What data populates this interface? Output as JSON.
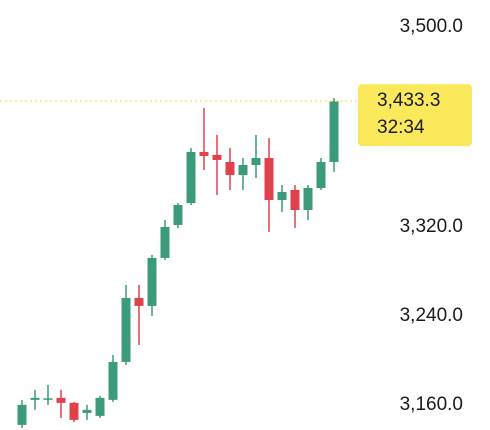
{
  "chart_data": {
    "type": "candlestick",
    "ylim": [
      3137.5,
      3524.3
    ],
    "yticks": [
      {
        "value": 3500,
        "label": "3,500.0"
      },
      {
        "value": 3320,
        "label": "3,320.0"
      },
      {
        "value": 3240,
        "label": "3,240.0"
      },
      {
        "value": 3160,
        "label": "3,160.0"
      }
    ],
    "up_color": "#3c9b7d",
    "down_color": "#e0424c",
    "open": [
      3142.1,
      3164.6,
      3165.5,
      3166.4,
      3161.9,
      3152.9,
      3150.2,
      3164.6,
      3198.7,
      3256.3,
      3249.1,
      3292.3,
      3321.9,
      3341.7,
      3387.6,
      3384.9,
      3378.6,
      3366.9,
      3375.9,
      3382.2,
      3344.4,
      3353.4,
      3335.4,
      3355.2,
      3378.6
    ],
    "high": [
      3164.6,
      3173.6,
      3178.1,
      3173.6,
      3162.8,
      3160.1,
      3168.2,
      3205.0,
      3268.0,
      3268.0,
      3295.0,
      3326.4,
      3341.7,
      3391.2,
      3427.2,
      3402.9,
      3391.2,
      3382.2,
      3402.9,
      3400.2,
      3357.9,
      3357.9,
      3357.9,
      3382.2,
      3436.1
    ],
    "low": [
      3139.4,
      3155.6,
      3160.1,
      3148.4,
      3144.8,
      3146.6,
      3148.4,
      3162.8,
      3196.0,
      3214.0,
      3240.1,
      3290.5,
      3319.2,
      3339.9,
      3371.4,
      3348.9,
      3353.4,
      3353.4,
      3364.2,
      3315.6,
      3333.6,
      3319.2,
      3326.4,
      3353.4,
      3369.6
    ],
    "close": [
      3160.1,
      3166.4,
      3166.0,
      3161.9,
      3146.6,
      3155.6,
      3166.4,
      3198.7,
      3256.3,
      3249.1,
      3292.3,
      3320.1,
      3339.9,
      3387.6,
      3384.0,
      3380.4,
      3366.9,
      3375.9,
      3382.2,
      3344.4,
      3351.6,
      3335.4,
      3355.2,
      3378.6,
      3433.3
    ],
    "last_price": {
      "value": 3433.3,
      "label": "3,433.3"
    },
    "countdown": "32:34",
    "price_tag_color": "#fbe95c"
  }
}
